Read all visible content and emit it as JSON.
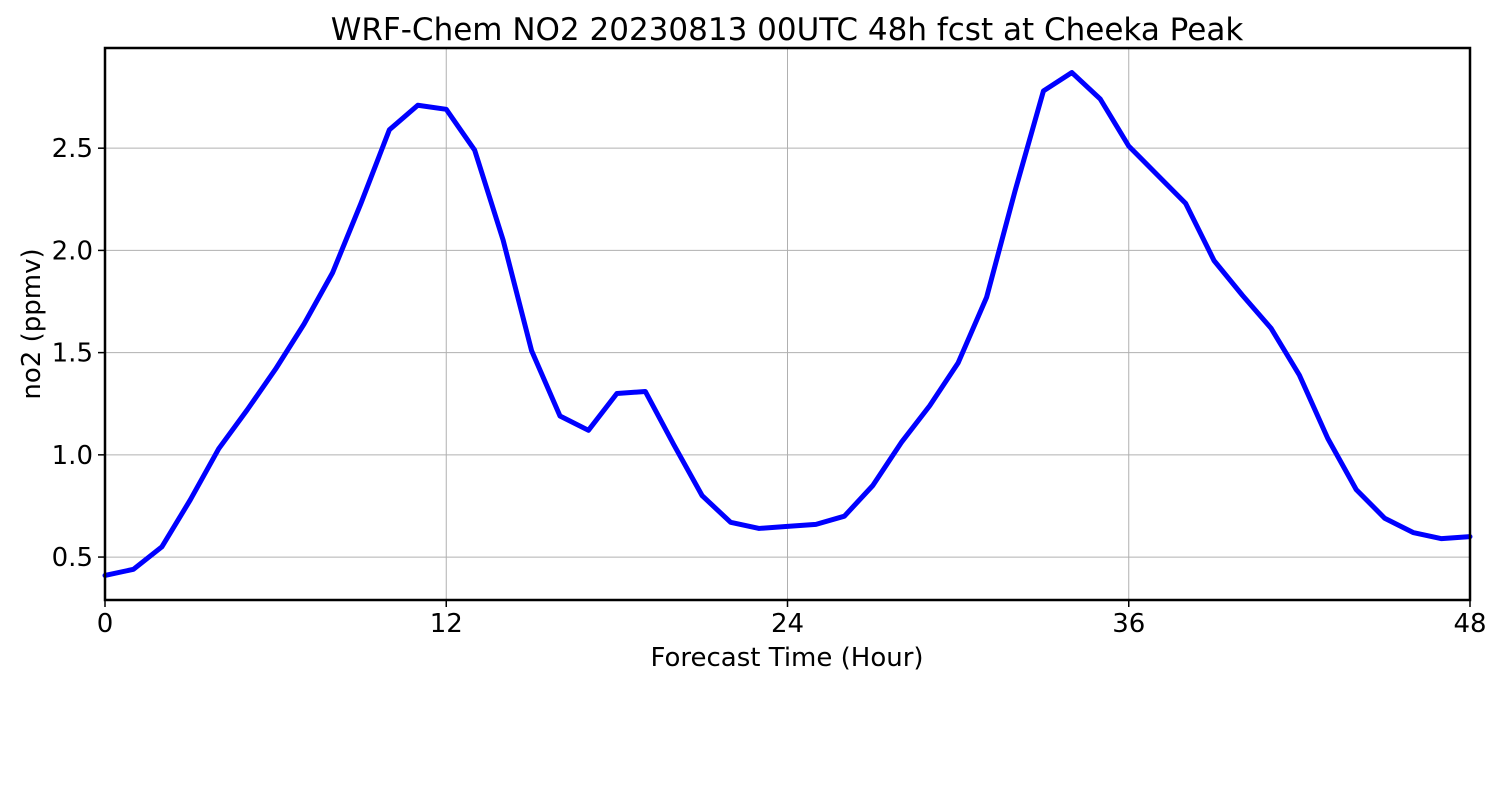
{
  "chart_data": {
    "type": "line",
    "title": "WRF-Chem NO2  20230813 00UTC 48h fcst at Cheeka Peak",
    "xlabel": "Forecast Time (Hour)",
    "ylabel": "no2  (ppmv)",
    "xlim": [
      0,
      48
    ],
    "ylim": [
      0.29,
      2.99
    ],
    "xticks": [
      0,
      12,
      24,
      36,
      48
    ],
    "xtick_labels": [
      "0",
      "12",
      "24",
      "36",
      "48"
    ],
    "yticks": [
      0.5,
      1.0,
      1.5,
      2.0,
      2.5
    ],
    "ytick_labels": [
      "0.5",
      "1.0",
      "1.5",
      "2.0",
      "2.5"
    ],
    "grid": true,
    "line_color": "#0000ff",
    "series": [
      {
        "x": [
          0,
          1,
          2,
          3,
          4,
          5,
          6,
          7,
          8,
          9,
          10,
          11,
          12,
          13,
          14,
          15,
          16,
          17,
          18,
          19,
          20,
          21,
          22,
          23,
          24,
          25,
          26,
          27,
          28,
          29,
          30,
          31,
          32,
          33,
          34,
          35,
          36,
          37,
          38,
          39,
          40,
          41,
          42,
          43,
          44,
          45,
          46,
          47,
          48
        ],
        "values": [
          0.41,
          0.44,
          0.55,
          0.78,
          1.03,
          1.22,
          1.42,
          1.64,
          1.89,
          2.23,
          2.59,
          2.71,
          2.69,
          2.49,
          2.05,
          1.51,
          1.19,
          1.12,
          1.3,
          1.31,
          1.05,
          0.8,
          0.67,
          0.64,
          0.65,
          0.66,
          0.7,
          0.85,
          1.06,
          1.24,
          1.45,
          1.77,
          2.29,
          2.78,
          2.87,
          2.74,
          2.51,
          2.37,
          2.23,
          1.95,
          1.78,
          1.62,
          1.39,
          1.08,
          0.83,
          0.69,
          0.62,
          0.59,
          0.6
        ]
      }
    ]
  }
}
